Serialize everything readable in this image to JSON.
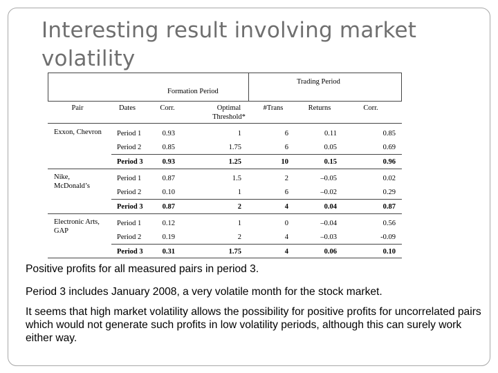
{
  "title": "Interesting result involving market volatility",
  "table": {
    "header_trading_period": "Trading Period",
    "header_formation_period": "Formation Period",
    "columns": {
      "pair": "Pair",
      "dates": "Dates",
      "corr_formation": "Corr.",
      "optimal_threshold": "Optimal Threshold*",
      "trans": "#Trans",
      "returns": "Returns",
      "corr_trading": "Corr."
    },
    "groups": [
      {
        "pair": "Exxon, Chevron",
        "rows": [
          {
            "dates": "Period 1",
            "corr": "0.93",
            "threshold": "1",
            "trans": "6",
            "returns": "0.11",
            "corr2": "0.85",
            "bold": false
          },
          {
            "dates": "Period 2",
            "corr": "0.85",
            "threshold": "1.75",
            "trans": "6",
            "returns": "0.05",
            "corr2": "0.69",
            "bold": false
          },
          {
            "dates": "Period 3",
            "corr": "0.93",
            "threshold": "1.25",
            "trans": "10",
            "returns": "0.15",
            "corr2": "0.96",
            "bold": true
          }
        ]
      },
      {
        "pair": "Nike, McDonald’s",
        "rows": [
          {
            "dates": "Period 1",
            "corr": "0.87",
            "threshold": "1.5",
            "trans": "2",
            "returns": "–0.05",
            "corr2": "0.02",
            "bold": false
          },
          {
            "dates": "Period 2",
            "corr": "0.10",
            "threshold": "1",
            "trans": "6",
            "returns": "–0.02",
            "corr2": "0.29",
            "bold": false
          },
          {
            "dates": "Period 3",
            "corr": "0.87",
            "threshold": "2",
            "trans": "4",
            "returns": "0.04",
            "corr2": "0.87",
            "bold": true
          }
        ]
      },
      {
        "pair": "Electronic Arts, GAP",
        "rows": [
          {
            "dates": "Period 1",
            "corr": "0.12",
            "threshold": "1",
            "trans": "0",
            "returns": "–0.04",
            "corr2": "0.56",
            "bold": false
          },
          {
            "dates": "Period 2",
            "corr": "0.19",
            "threshold": "2",
            "trans": "4",
            "returns": "–0.03",
            "corr2": "-0.09",
            "bold": false
          },
          {
            "dates": "Period 3",
            "corr": "0.31",
            "threshold": "1.75",
            "trans": "4",
            "returns": "0.06",
            "corr2": "0.10",
            "bold": true
          }
        ]
      }
    ]
  },
  "bullets": [
    "Positive profits for all measured pairs in period 3.",
    "Period 3 includes January 2008, a very volatile month for the stock market.",
    "It seems that high market volatility allows the possibility for positive profits for uncorrelated pairs which would not generate such profits in low volatility periods, although this can surely work either way."
  ]
}
